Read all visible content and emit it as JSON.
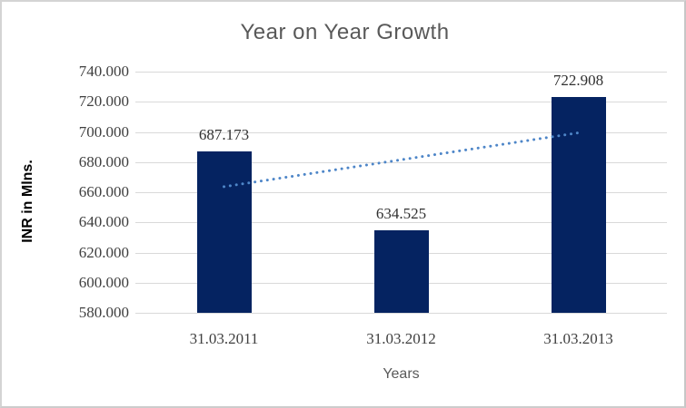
{
  "chart_data": {
    "type": "bar",
    "title": "Year on Year Growth",
    "xlabel": "Years",
    "ylabel": "INR in Mlns.",
    "categories": [
      "31.03.2011",
      "31.03.2012",
      "31.03.2013"
    ],
    "series": [
      {
        "name": "INR in Mlns.",
        "values": [
          687.173,
          634.525,
          722.908
        ]
      }
    ],
    "data_labels": [
      "687.173",
      "634.525",
      "722.908"
    ],
    "ylim": [
      580,
      740
    ],
    "ytick_interval": 20,
    "ytick_labels": [
      "740.000",
      "720.000",
      "700.000",
      "680.000",
      "660.000",
      "640.000",
      "620.000",
      "600.000",
      "580.000"
    ],
    "grid": true,
    "legend_position": "none",
    "trendline": {
      "style": "dotted",
      "shape": "linear",
      "start_value": 663.66,
      "end_value": 699.4
    },
    "colors": {
      "bar": "#052361",
      "trendline": "#4e86c8",
      "gridline": "#d9d9d9",
      "title_text": "#595959",
      "tick_text": "#3f3f3f",
      "axis_title_text": "#595959",
      "background": "#ffffff",
      "frame_border": "#cccccc"
    }
  }
}
